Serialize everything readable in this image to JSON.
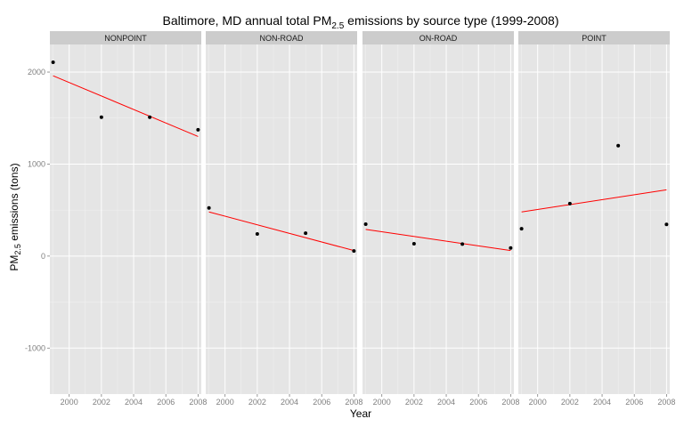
{
  "chart_data": {
    "type": "scatter",
    "title": {
      "prefix": "Baltimore, MD annual total PM",
      "subscript": "2.5",
      "suffix": " emissions by source type (1999-2008)"
    },
    "xlabel": "Year",
    "ylabel": {
      "prefix": "PM",
      "subscript": "2.5",
      "suffix": " emissions (tons)"
    },
    "xlim": [
      1998.8,
      2008.2
    ],
    "ylim": [
      -1500,
      2300
    ],
    "x_ticks": [
      2000,
      2002,
      2004,
      2006,
      2008
    ],
    "x_tick_labels": [
      "2000",
      "2002",
      "2004",
      "2006",
      "2008"
    ],
    "y_ticks": [
      -1000,
      0,
      1000,
      2000
    ],
    "y_tick_labels": [
      "-1000",
      "0",
      "1000",
      "2000"
    ],
    "grid": true,
    "point_color": "#000000",
    "fit_color": "#ff0000",
    "panel_background": "#e5e5e5",
    "strip_background": "#cccccc",
    "panels": [
      {
        "label": "NONPOINT",
        "points": [
          {
            "x": 1999,
            "y": 2107
          },
          {
            "x": 2002,
            "y": 1510
          },
          {
            "x": 2005,
            "y": 1510
          },
          {
            "x": 2008,
            "y": 1373
          }
        ],
        "fit": [
          {
            "x": 1999,
            "y": 1960
          },
          {
            "x": 2008,
            "y": 1300
          }
        ]
      },
      {
        "label": "NON-ROAD",
        "points": [
          {
            "x": 1999,
            "y": 523
          },
          {
            "x": 2002,
            "y": 241
          },
          {
            "x": 2005,
            "y": 249
          },
          {
            "x": 2008,
            "y": 56
          }
        ],
        "fit": [
          {
            "x": 1999,
            "y": 480
          },
          {
            "x": 2008,
            "y": 60
          }
        ]
      },
      {
        "label": "ON-ROAD",
        "points": [
          {
            "x": 1999,
            "y": 347
          },
          {
            "x": 2002,
            "y": 134
          },
          {
            "x": 2005,
            "y": 131
          },
          {
            "x": 2008,
            "y": 88
          }
        ],
        "fit": [
          {
            "x": 1999,
            "y": 290
          },
          {
            "x": 2008,
            "y": 60
          }
        ]
      },
      {
        "label": "POINT",
        "points": [
          {
            "x": 1999,
            "y": 297
          },
          {
            "x": 2002,
            "y": 570
          },
          {
            "x": 2005,
            "y": 1200
          },
          {
            "x": 2008,
            "y": 345
          }
        ],
        "fit": [
          {
            "x": 1999,
            "y": 480
          },
          {
            "x": 2008,
            "y": 720
          }
        ]
      }
    ]
  }
}
